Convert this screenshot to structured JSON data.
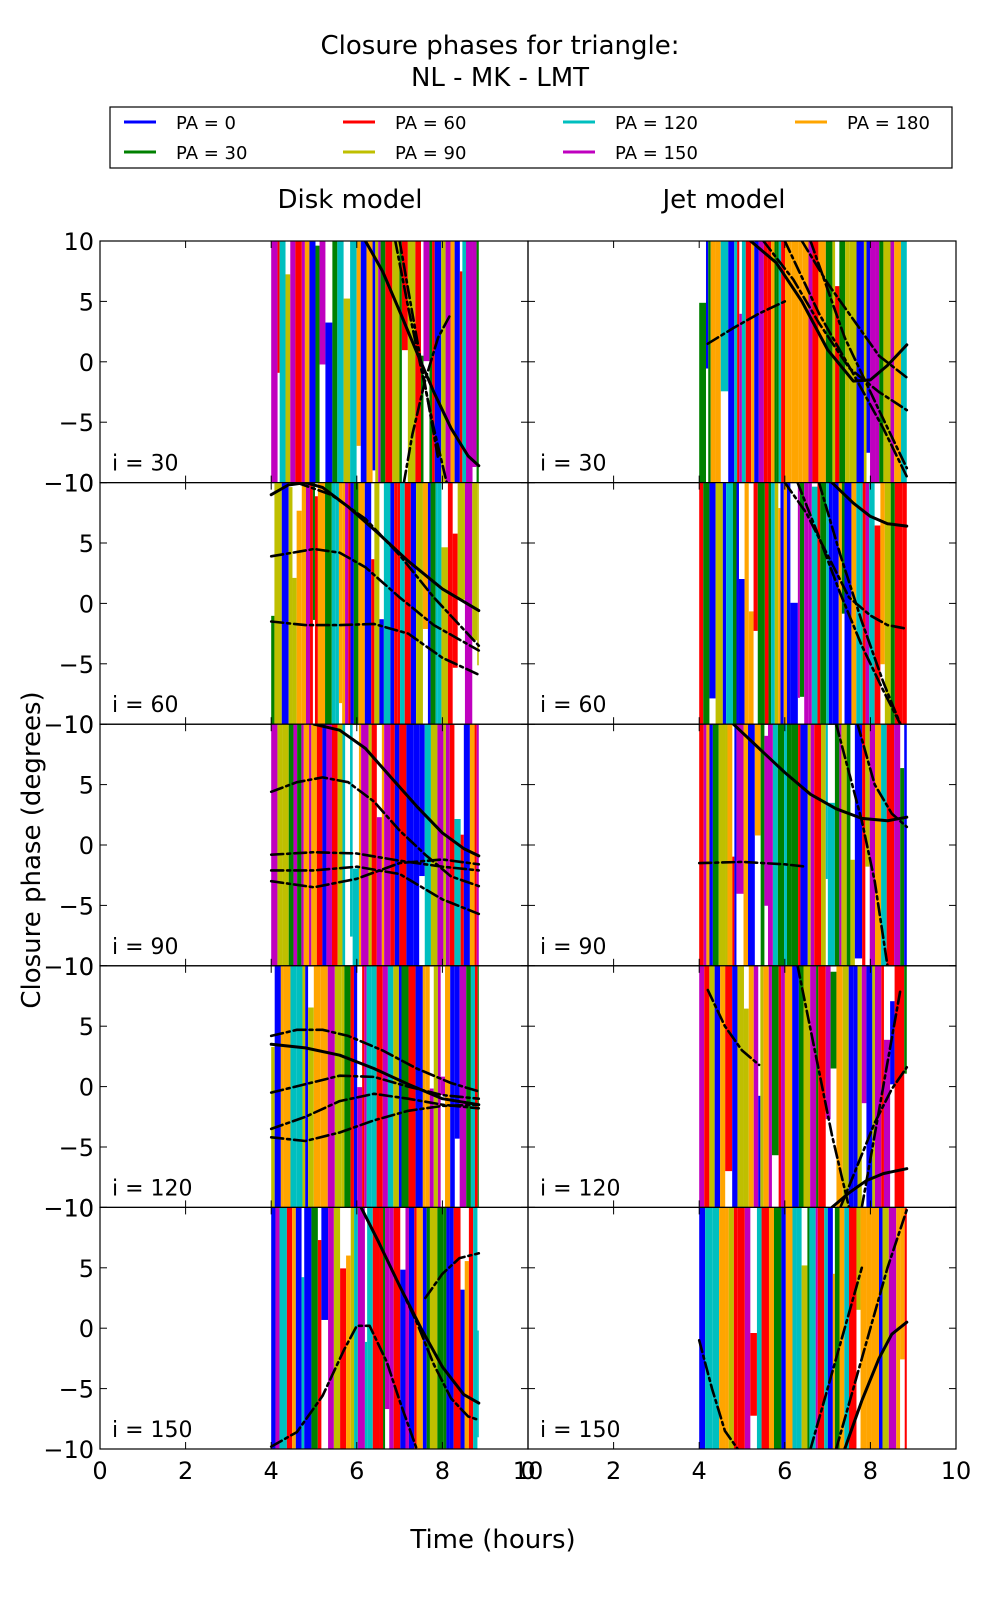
{
  "chart_data": {
    "type": "line",
    "title": [
      "Closure phases for triangle:",
      "NL - MK - LMT"
    ],
    "columns": [
      "Disk model",
      "Jet model"
    ],
    "xlabel": "Time (hours)",
    "ylabel": "Closure phase (degrees)",
    "xlim": [
      0,
      10
    ],
    "ylim": [
      -10,
      10
    ],
    "xticks": [
      0,
      2,
      4,
      6,
      8,
      10
    ],
    "yticks": [
      -10,
      -5,
      0,
      5,
      10
    ],
    "xtick_labels": [
      "0",
      "2",
      "4",
      "6",
      "8",
      "10"
    ],
    "ytick_labels": [
      "−10",
      "−5",
      "0",
      "5",
      "10"
    ],
    "rows": [
      "i = 30",
      "i = 60",
      "i = 90",
      "i = 120",
      "i = 150"
    ],
    "legend_placement": "top",
    "legend": [
      {
        "label": "PA = 0",
        "color": "#0000ff"
      },
      {
        "label": "PA = 30",
        "color": "#008000"
      },
      {
        "label": "PA = 60",
        "color": "#ff0000"
      },
      {
        "label": "PA = 90",
        "color": "#bfbf00"
      },
      {
        "label": "PA = 120",
        "color": "#00bfbf"
      },
      {
        "label": "PA = 150",
        "color": "#bf00bf"
      },
      {
        "label": "PA = 180",
        "color": "#ffa500"
      }
    ],
    "data_range": [
      4.0,
      8.85
    ],
    "model_curves": [
      [
        {
          "row": 0,
          "col": 0,
          "style": "solid",
          "x": [
            6.2,
            6.6,
            7.0,
            7.4,
            7.8,
            8.2,
            8.6,
            8.85
          ],
          "y": [
            10,
            7.5,
            4.2,
            0.8,
            -2.5,
            -5.5,
            -7.8,
            -8.6
          ]
        },
        {
          "row": 0,
          "col": 0,
          "style": "dashdot",
          "x": [
            6.9,
            7.2,
            7.5,
            7.8,
            8.1
          ],
          "y": [
            10,
            4.5,
            -0.5,
            -5.5,
            -10
          ]
        },
        {
          "row": 0,
          "col": 0,
          "style": "dashdot",
          "x": [
            7.0,
            7.3,
            7.6,
            7.9
          ],
          "y": [
            10,
            4.0,
            -2.0,
            -8.0
          ]
        },
        {
          "row": 0,
          "col": 0,
          "style": "dashdot",
          "x": [
            7.1,
            7.3,
            7.6,
            7.9,
            8.2
          ],
          "y": [
            -10,
            -6.0,
            -1.5,
            2.0,
            4.0
          ]
        }
      ],
      [
        {
          "row": 0,
          "col": 1,
          "style": "solid",
          "x": [
            5.2,
            5.8,
            6.4,
            7.0,
            7.6,
            8.0,
            8.4,
            8.85
          ],
          "y": [
            10,
            8.2,
            5.0,
            1.0,
            -1.6,
            -1.5,
            -0.3,
            1.4
          ]
        },
        {
          "row": 0,
          "col": 1,
          "style": "dashdot",
          "x": [
            6.4,
            7.0,
            7.6,
            8.2,
            8.85
          ],
          "y": [
            10,
            6.5,
            3.5,
            0.5,
            -1.3
          ]
        },
        {
          "row": 0,
          "col": 1,
          "style": "dashdot",
          "x": [
            5.5,
            6.2,
            6.8,
            7.5,
            8.2,
            8.85
          ],
          "y": [
            10,
            6.8,
            3.2,
            -0.5,
            -2.5,
            -4.0
          ]
        },
        {
          "row": 0,
          "col": 1,
          "style": "dashdot",
          "x": [
            6.0,
            6.8,
            7.6,
            8.3,
            8.85
          ],
          "y": [
            10,
            4.0,
            -1.0,
            -5.5,
            -9.5
          ]
        },
        {
          "row": 0,
          "col": 1,
          "style": "dashdot",
          "x": [
            6.6,
            7.4,
            8.2,
            8.85
          ],
          "y": [
            10,
            2.0,
            -4.0,
            -8.8
          ]
        },
        {
          "row": 0,
          "col": 1,
          "style": "dashdot",
          "x": [
            4.2,
            4.8,
            5.4,
            6.0
          ],
          "y": [
            1.5,
            2.8,
            4.0,
            5.0
          ]
        }
      ],
      [
        {
          "row": 1,
          "col": 0,
          "style": "solid",
          "x": [
            4.0,
            4.4,
            4.8,
            5.2,
            5.8,
            6.5,
            7.2,
            8.0,
            8.85
          ],
          "y": [
            9.0,
            9.8,
            10,
            9.6,
            8.0,
            5.8,
            3.5,
            1.2,
            -0.6
          ]
        },
        {
          "row": 1,
          "col": 0,
          "style": "dashdot",
          "x": [
            4.0,
            4.5,
            5.0,
            5.6,
            6.2,
            7.0,
            7.8,
            8.85
          ],
          "y": [
            3.9,
            4.2,
            4.5,
            4.2,
            3.0,
            0.5,
            -1.8,
            -3.9
          ]
        },
        {
          "row": 1,
          "col": 0,
          "style": "dashdot",
          "x": [
            4.0,
            4.8,
            5.6,
            6.4,
            7.2,
            8.0,
            8.85
          ],
          "y": [
            -1.5,
            -1.8,
            -1.8,
            -1.7,
            -2.5,
            -4.5,
            -5.9
          ]
        },
        {
          "row": 1,
          "col": 0,
          "style": "dashdot",
          "x": [
            4.6,
            5.4,
            6.2,
            7.0,
            7.8,
            8.85
          ],
          "y": [
            10,
            9.0,
            7.0,
            4.0,
            0.5,
            -3.5
          ]
        }
      ],
      [
        {
          "row": 1,
          "col": 1,
          "style": "solid",
          "x": [
            7.1,
            7.6,
            8.0,
            8.4,
            8.85
          ],
          "y": [
            10,
            8.3,
            7.2,
            6.6,
            6.4
          ]
        },
        {
          "row": 1,
          "col": 1,
          "style": "dashdot",
          "x": [
            6.0,
            6.5,
            7.0,
            7.5,
            8.0,
            8.4,
            8.85
          ],
          "y": [
            10,
            7.5,
            4.0,
            0.5,
            -1.0,
            -1.8,
            -2.1
          ]
        },
        {
          "row": 1,
          "col": 1,
          "style": "dashdot",
          "x": [
            6.3,
            6.8,
            7.3,
            7.8,
            8.3,
            8.7
          ],
          "y": [
            10,
            5.5,
            0.8,
            -3.5,
            -7.2,
            -10
          ]
        },
        {
          "row": 1,
          "col": 1,
          "style": "dashdot",
          "x": [
            6.8,
            7.3,
            7.8,
            8.3,
            8.7
          ],
          "y": [
            10,
            4.0,
            -1.5,
            -6.5,
            -10
          ]
        }
      ],
      [
        {
          "row": 2,
          "col": 0,
          "style": "solid",
          "x": [
            5.0,
            5.6,
            6.2,
            6.8,
            7.4,
            8.0,
            8.5,
            8.85
          ],
          "y": [
            10,
            9.5,
            8.0,
            5.6,
            3.2,
            1.0,
            -0.3,
            -0.9
          ]
        },
        {
          "row": 2,
          "col": 0,
          "style": "dashdot",
          "x": [
            4.0,
            4.6,
            5.2,
            5.8,
            6.4,
            7.0,
            7.6,
            8.2,
            8.85
          ],
          "y": [
            4.4,
            5.2,
            5.6,
            5.2,
            3.6,
            1.2,
            -0.8,
            -2.6,
            -3.4
          ]
        },
        {
          "row": 2,
          "col": 0,
          "style": "dashdot",
          "x": [
            4.0,
            5.0,
            6.0,
            7.0,
            8.0,
            8.85
          ],
          "y": [
            -0.8,
            -0.6,
            -0.7,
            -1.3,
            -1.8,
            -2.1
          ]
        },
        {
          "row": 2,
          "col": 0,
          "style": "dashdot",
          "x": [
            4.0,
            5.0,
            6.0,
            7.0,
            8.0,
            8.85
          ],
          "y": [
            -2.1,
            -2.1,
            -1.8,
            -2.4,
            -4.5,
            -5.7
          ]
        },
        {
          "row": 2,
          "col": 0,
          "style": "dashdot",
          "x": [
            4.0,
            5.0,
            6.0,
            7.0,
            8.0,
            8.85
          ],
          "y": [
            -3.0,
            -3.5,
            -2.8,
            -1.5,
            -1.2,
            -1.6
          ]
        }
      ],
      [
        {
          "row": 2,
          "col": 1,
          "style": "solid",
          "x": [
            4.8,
            5.4,
            6.0,
            6.6,
            7.2,
            7.8,
            8.4,
            8.85
          ],
          "y": [
            10,
            8.0,
            6.0,
            4.2,
            3.0,
            2.2,
            2.0,
            2.3
          ]
        },
        {
          "row": 2,
          "col": 1,
          "style": "dashdot",
          "x": [
            7.2,
            7.5,
            7.8,
            8.1,
            8.4
          ],
          "y": [
            10,
            6.0,
            2.0,
            -3.0,
            -10
          ]
        },
        {
          "row": 2,
          "col": 1,
          "style": "dashdot",
          "x": [
            7.7,
            8.1,
            8.5,
            8.85
          ],
          "y": [
            10,
            5.0,
            2.6,
            1.5
          ]
        },
        {
          "row": 2,
          "col": 1,
          "style": "dashdot",
          "x": [
            4.0,
            5.0,
            6.0,
            6.5
          ],
          "y": [
            -1.5,
            -1.4,
            -1.6,
            -1.8
          ]
        }
      ],
      [
        {
          "row": 3,
          "col": 0,
          "style": "solid",
          "x": [
            4.0,
            4.8,
            5.6,
            6.4,
            7.2,
            8.0,
            8.85
          ],
          "y": [
            3.5,
            3.2,
            2.6,
            1.5,
            0.2,
            -1.0,
            -1.5
          ]
        },
        {
          "row": 3,
          "col": 0,
          "style": "dashdot",
          "x": [
            4.0,
            4.6,
            5.2,
            5.8,
            6.6,
            7.4,
            8.2,
            8.85
          ],
          "y": [
            4.2,
            4.7,
            4.7,
            4.2,
            3.0,
            1.5,
            0.3,
            -0.4
          ]
        },
        {
          "row": 3,
          "col": 0,
          "style": "dashdot",
          "x": [
            4.0,
            4.8,
            5.6,
            6.4,
            7.2,
            8.0,
            8.85
          ],
          "y": [
            -0.5,
            0.2,
            0.9,
            0.8,
            0.0,
            -0.7,
            -1.0
          ]
        },
        {
          "row": 3,
          "col": 0,
          "style": "dashdot",
          "x": [
            4.0,
            4.8,
            5.6,
            6.4,
            7.2,
            8.0,
            8.85
          ],
          "y": [
            -3.5,
            -2.5,
            -1.2,
            -0.6,
            -1.0,
            -1.5,
            -1.8
          ]
        },
        {
          "row": 3,
          "col": 0,
          "style": "dashdot",
          "x": [
            4.0,
            4.8,
            5.6,
            6.4,
            7.2,
            8.0,
            8.85
          ],
          "y": [
            -4.2,
            -4.5,
            -3.8,
            -2.8,
            -2.0,
            -1.6,
            -1.5
          ]
        }
      ],
      [
        {
          "row": 3,
          "col": 1,
          "style": "solid",
          "x": [
            7.1,
            7.5,
            7.9,
            8.3,
            8.85
          ],
          "y": [
            -10,
            -8.8,
            -7.8,
            -7.2,
            -6.8
          ]
        },
        {
          "row": 3,
          "col": 1,
          "style": "dashdot",
          "x": [
            7.3,
            7.7,
            8.1,
            8.5,
            8.85
          ],
          "y": [
            -10,
            -6.5,
            -3.0,
            -0.2,
            1.6
          ]
        },
        {
          "row": 3,
          "col": 1,
          "style": "dashdot",
          "x": [
            6.3,
            6.7,
            7.1,
            7.5
          ],
          "y": [
            10,
            3.0,
            -4.0,
            -10
          ]
        },
        {
          "row": 3,
          "col": 1,
          "style": "dashdot",
          "x": [
            7.8,
            8.1,
            8.4,
            8.7
          ],
          "y": [
            -10,
            -4.0,
            2.0,
            8.0
          ]
        },
        {
          "row": 3,
          "col": 1,
          "style": "dashdot",
          "x": [
            4.2,
            4.6,
            5.0,
            5.4
          ],
          "y": [
            8.0,
            5.0,
            3.0,
            1.8
          ]
        }
      ],
      [
        {
          "row": 4,
          "col": 0,
          "style": "solid",
          "x": [
            6.1,
            6.5,
            7.0,
            7.5,
            8.0,
            8.5,
            8.85
          ],
          "y": [
            10,
            7.2,
            3.5,
            0.0,
            -3.2,
            -5.5,
            -6.2
          ]
        },
        {
          "row": 4,
          "col": 0,
          "style": "dashdot",
          "x": [
            4.0,
            4.6,
            5.2,
            5.7,
            6.0,
            6.3,
            6.7,
            7.0,
            7.4
          ],
          "y": [
            -9.8,
            -8.6,
            -5.6,
            -1.8,
            0.2,
            0.2,
            -2.8,
            -6.0,
            -10
          ]
        },
        {
          "row": 4,
          "col": 0,
          "style": "dashdot",
          "x": [
            7.0,
            7.4,
            7.8,
            8.2,
            8.6,
            8.85
          ],
          "y": [
            3.5,
            0.5,
            -3.0,
            -5.8,
            -7.3,
            -7.6
          ]
        },
        {
          "row": 4,
          "col": 0,
          "style": "dashdot",
          "x": [
            7.6,
            8.0,
            8.4,
            8.85
          ],
          "y": [
            2.5,
            4.5,
            5.8,
            6.2
          ]
        }
      ],
      [
        {
          "row": 4,
          "col": 1,
          "style": "solid",
          "x": [
            7.4,
            7.8,
            8.2,
            8.5,
            8.85
          ],
          "y": [
            -10,
            -6.0,
            -2.5,
            -0.5,
            0.5
          ]
        },
        {
          "row": 4,
          "col": 1,
          "style": "dashdot",
          "x": [
            7.2,
            7.6,
            8.0,
            8.4,
            8.85
          ],
          "y": [
            -10,
            -5.0,
            0.0,
            5.0,
            9.8
          ]
        },
        {
          "row": 4,
          "col": 1,
          "style": "dashdot",
          "x": [
            6.6,
            7.0,
            7.4,
            7.8
          ],
          "y": [
            -10,
            -5.0,
            0.0,
            5.0
          ]
        },
        {
          "row": 4,
          "col": 1,
          "style": "dashdot",
          "x": [
            4.0,
            4.3,
            4.6,
            4.9
          ],
          "y": [
            -1.0,
            -5.0,
            -8.5,
            -10
          ]
        }
      ]
    ]
  }
}
